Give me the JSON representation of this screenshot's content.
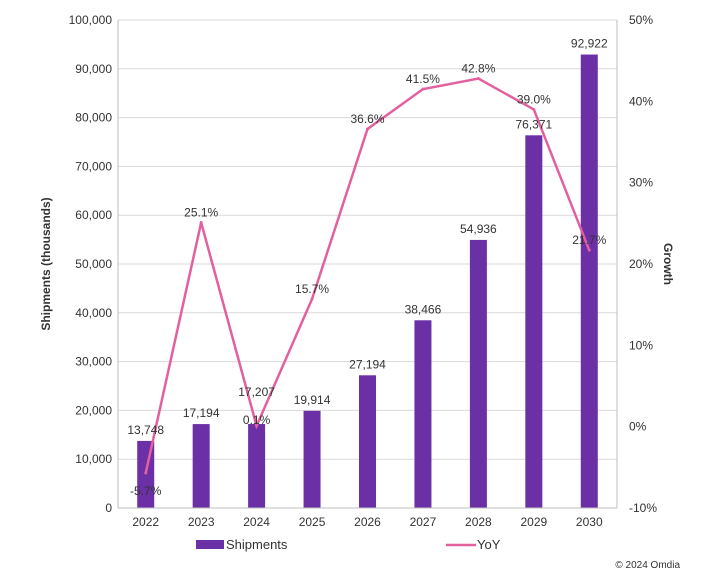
{
  "chart_data": {
    "type": "bar+line",
    "categories": [
      "2022",
      "2023",
      "2024",
      "2025",
      "2026",
      "2027",
      "2028",
      "2029",
      "2030"
    ],
    "series": [
      {
        "name": "Shipments",
        "type": "bar",
        "axis": "left",
        "color": "#6b2fa6",
        "values": [
          13748,
          17194,
          17207,
          19914,
          27194,
          38466,
          54936,
          76371,
          92922
        ],
        "labels": [
          "13,748",
          "17,194",
          "17,207",
          "19,914",
          "27,194",
          "38,466",
          "54,936",
          "76,371",
          "92,922"
        ]
      },
      {
        "name": "YoY",
        "type": "line",
        "axis": "right",
        "color": "#e2609e",
        "values": [
          -5.7,
          25.1,
          0.1,
          15.7,
          36.6,
          41.5,
          42.8,
          39.0,
          21.7
        ],
        "labels": [
          "-5.7%",
          "25.1%",
          "0.1%",
          "15.7%",
          "36.6%",
          "41.5%",
          "42.8%",
          "39.0%",
          "21.7%"
        ]
      }
    ],
    "ylabel": "Shipments (thousands)",
    "y2label": "Growth",
    "ylim": [
      0,
      100000
    ],
    "y2lim": [
      -10,
      50
    ],
    "yticks": [
      "0",
      "10,000",
      "20,000",
      "30,000",
      "40,000",
      "50,000",
      "60,000",
      "70,000",
      "80,000",
      "90,000",
      "100,000"
    ],
    "y2ticks": [
      "-10%",
      "0%",
      "10%",
      "20%",
      "30%",
      "40%",
      "50%"
    ],
    "grid": true,
    "legend": "bottom",
    "source": "© 2024 Omdia"
  }
}
